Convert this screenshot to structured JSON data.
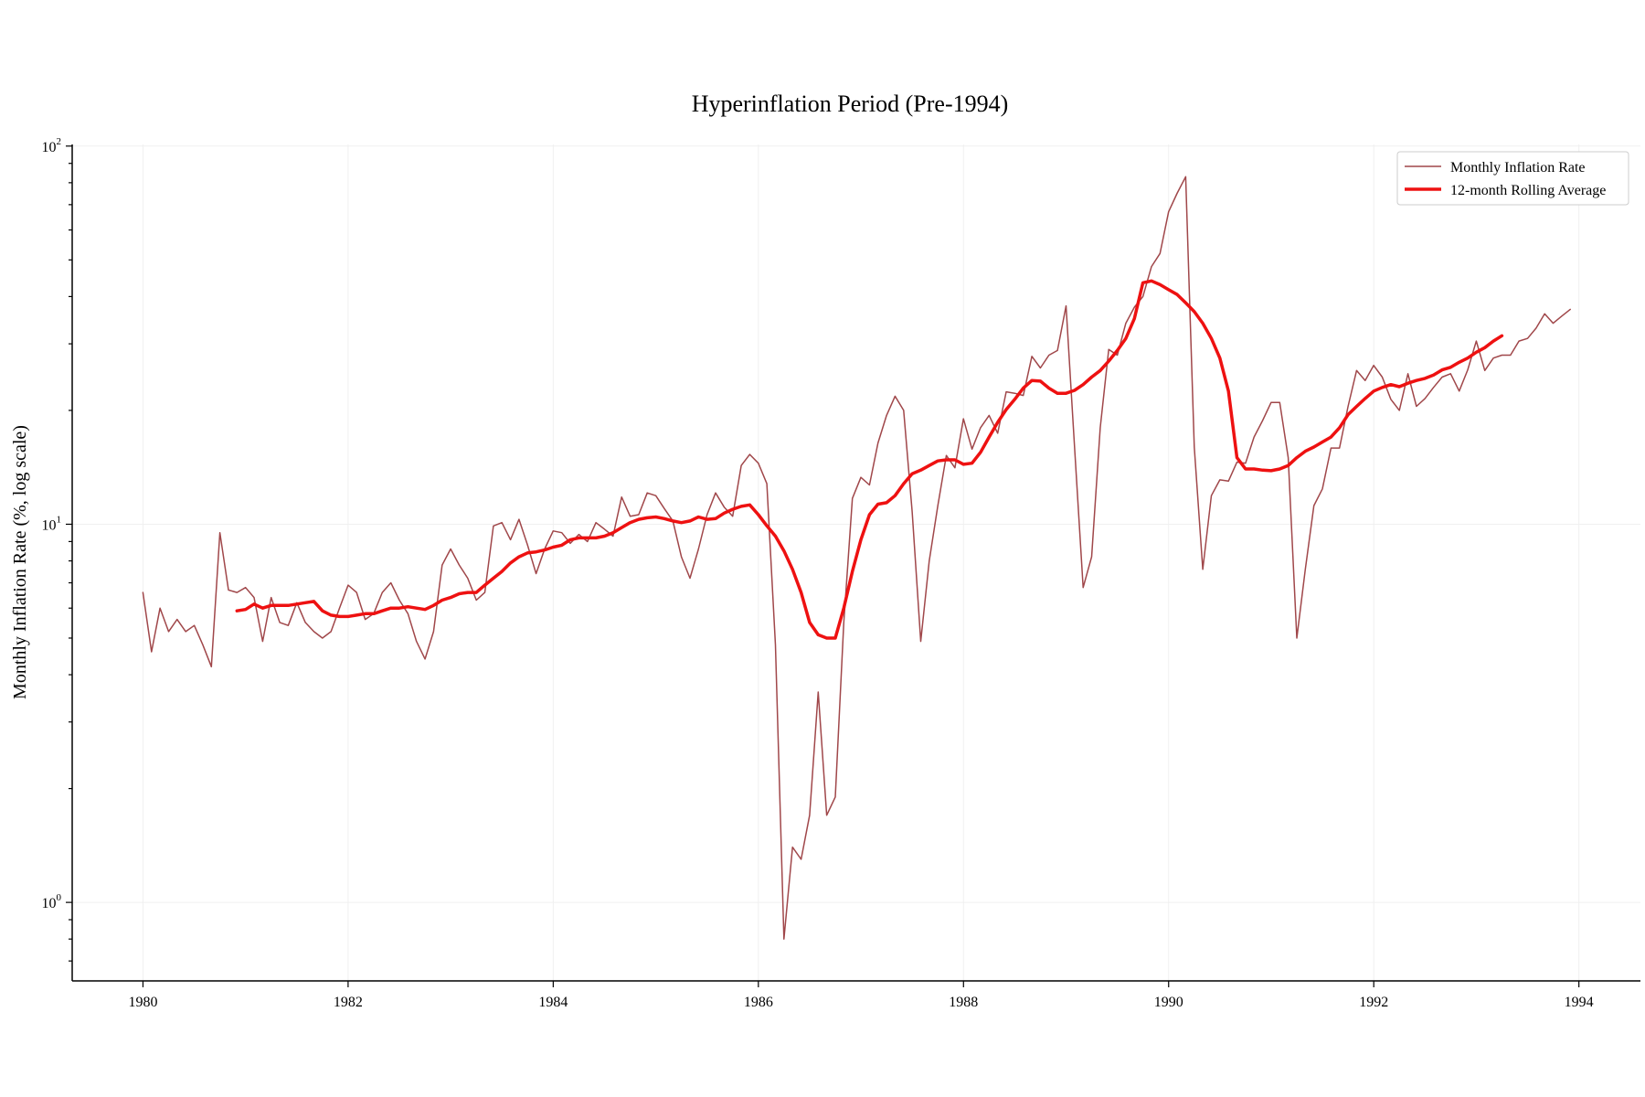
{
  "chart_data": {
    "type": "line",
    "title": "Hyperinflation Period (Pre-1994)",
    "ylabel": "Monthly Inflation Rate (%, log scale)",
    "xlabel": "",
    "yscale": "log",
    "xlim": [
      1979.31,
      1994.6
    ],
    "ylim": [
      0.62,
      101
    ],
    "x_ticks": [
      1980,
      1982,
      1984,
      1986,
      1988,
      1990,
      1992,
      1994
    ],
    "x_tick_labels": [
      "1980",
      "1982",
      "1984",
      "1986",
      "1988",
      "1990",
      "1992",
      "1994"
    ],
    "y_ticks": [
      {
        "value": 1,
        "base": "10",
        "exp": "0"
      },
      {
        "value": 10,
        "base": "10",
        "exp": "1"
      },
      {
        "value": 100,
        "base": "10",
        "exp": "2"
      }
    ],
    "grid": true,
    "legend_position": "top-right",
    "series": [
      {
        "name": "Monthly Inflation Rate",
        "color": "#a0474a",
        "x_start": 1980.0,
        "x_step": 0.08333,
        "values": [
          6.6,
          4.6,
          6.0,
          5.2,
          5.6,
          5.2,
          5.4,
          4.8,
          4.2,
          9.5,
          6.7,
          6.6,
          6.8,
          6.4,
          4.9,
          6.4,
          5.5,
          5.4,
          6.2,
          5.5,
          5.2,
          5.0,
          5.2,
          6.0,
          6.9,
          6.6,
          5.6,
          5.8,
          6.6,
          7.0,
          6.3,
          5.8,
          4.9,
          4.4,
          5.2,
          7.8,
          8.6,
          7.8,
          7.2,
          6.3,
          6.6,
          9.9,
          10.1,
          9.1,
          10.3,
          8.8,
          7.4,
          8.6,
          9.6,
          9.5,
          8.9,
          9.4,
          9.0,
          10.1,
          9.7,
          9.3,
          11.8,
          10.5,
          10.6,
          12.1,
          11.9,
          11.0,
          10.2,
          8.2,
          7.2,
          8.6,
          10.6,
          12.1,
          11.1,
          10.5,
          14.3,
          15.3,
          14.5,
          12.8,
          4.8,
          0.8,
          1.4,
          1.3,
          1.7,
          3.6,
          1.7,
          1.9,
          5.5,
          11.7,
          13.3,
          12.7,
          16.4,
          19.4,
          21.8,
          20.0,
          10.8,
          4.9,
          8.0,
          11.2,
          15.2,
          14.1,
          19.0,
          15.8,
          18.0,
          19.4,
          17.4,
          22.4,
          22.2,
          21.9,
          27.8,
          25.9,
          28.0,
          28.8,
          37.8,
          16.0,
          6.8,
          8.2,
          18.0,
          29.0,
          28.0,
          34.0,
          37.5,
          40.0,
          48.0,
          52.0,
          67.0,
          75.0,
          83.0,
          16.0,
          7.6,
          11.9,
          13.1,
          13.0,
          14.6,
          14.5,
          17.0,
          18.8,
          21.0,
          21.0,
          15.0,
          5.0,
          7.6,
          11.2,
          12.4,
          15.9,
          15.9,
          20.5,
          25.5,
          24.0,
          26.3,
          24.5,
          21.4,
          20.0,
          25.0,
          20.5,
          21.5,
          23.0,
          24.5,
          25.0,
          22.5,
          25.6,
          30.5,
          25.5,
          27.5,
          28.0,
          28.0,
          30.5,
          31.0,
          33.0,
          36.0,
          34.0,
          35.5,
          37.0
        ]
      },
      {
        "name": "12-month Rolling Average",
        "color": "#ee1111",
        "x_start": 1980.9167,
        "x_step": 0.08333,
        "values": [
          5.9,
          5.95,
          6.15,
          6.0,
          6.1,
          6.1,
          6.1,
          6.15,
          6.2,
          6.25,
          5.9,
          5.75,
          5.7,
          5.7,
          5.75,
          5.8,
          5.8,
          5.9,
          6.0,
          6.0,
          6.05,
          6.0,
          5.95,
          6.1,
          6.3,
          6.4,
          6.55,
          6.6,
          6.6,
          6.9,
          7.2,
          7.5,
          7.9,
          8.2,
          8.4,
          8.45,
          8.55,
          8.7,
          8.8,
          9.1,
          9.2,
          9.2,
          9.2,
          9.3,
          9.5,
          9.8,
          10.1,
          10.3,
          10.4,
          10.45,
          10.35,
          10.2,
          10.1,
          10.2,
          10.45,
          10.3,
          10.35,
          10.7,
          10.95,
          11.15,
          11.25,
          10.6,
          9.9,
          9.3,
          8.5,
          7.6,
          6.6,
          5.5,
          5.1,
          5.0,
          5.0,
          6.0,
          7.5,
          9.1,
          10.6,
          11.3,
          11.4,
          11.9,
          12.8,
          13.6,
          13.9,
          14.3,
          14.7,
          14.8,
          14.8,
          14.4,
          14.5,
          15.5,
          17.0,
          18.6,
          20.1,
          21.4,
          22.9,
          24.0,
          23.9,
          22.9,
          22.2,
          22.2,
          22.6,
          23.4,
          24.5,
          25.5,
          27.0,
          28.8,
          31.0,
          35.0,
          43.5,
          44.0,
          43.0,
          41.7,
          40.5,
          38.5,
          36.5,
          34.0,
          31.0,
          27.5,
          22.5,
          15.0,
          14.0,
          14.0,
          13.9,
          13.85,
          14.0,
          14.3,
          15.0,
          15.6,
          16.0,
          16.5,
          17.0,
          18.0,
          19.5,
          20.5,
          21.5,
          22.5,
          23.0,
          23.4,
          23.1,
          23.6,
          24.0,
          24.3,
          24.8,
          25.6,
          26.0,
          26.8,
          27.5,
          28.5,
          29.3,
          30.5,
          31.5
        ]
      }
    ]
  }
}
